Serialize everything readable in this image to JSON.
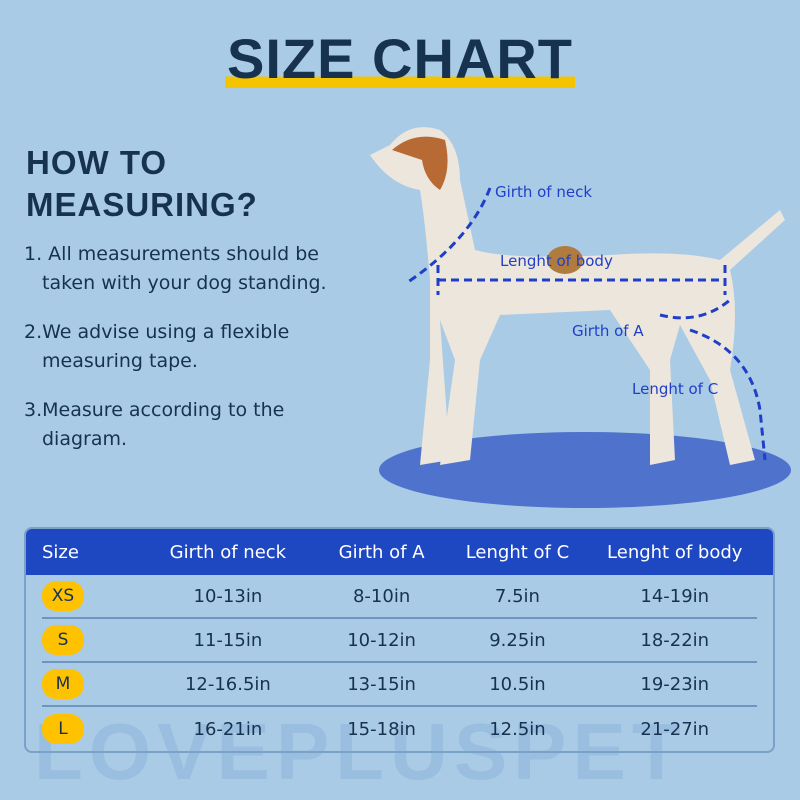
{
  "title": "SIZE CHART",
  "how_to": {
    "heading": "HOW TO MEASURING?",
    "steps": [
      "1. All measurements should be taken with your dog standing.",
      "2.We advise using a flexible measuring tape.",
      "3.Measure according to the diagram."
    ]
  },
  "diagram": {
    "labels": {
      "neck": "Girth of neck",
      "body": "Lenght of body",
      "a": "Girth of A",
      "c": "Lenght of C"
    },
    "accent": "#1f3fc8"
  },
  "table": {
    "headers": [
      "Size",
      "Girth of neck",
      "Girth of A",
      "Lenght of C",
      "Lenght of body"
    ],
    "rows": [
      {
        "size": "XS",
        "neck": "10-13in",
        "a": "8-10in",
        "c": "7.5in",
        "body": "14-19in"
      },
      {
        "size": "S",
        "neck": "11-15in",
        "a": "10-12in",
        "c": "9.25in",
        "body": "18-22in"
      },
      {
        "size": "M",
        "neck": "12-16.5in",
        "a": "13-15in",
        "c": "10.5in",
        "body": "19-23in"
      },
      {
        "size": "L",
        "neck": "16-21in",
        "a": "15-18in",
        "c": "12.5in",
        "body": "21-27in"
      }
    ],
    "header_color": "#1e47c2",
    "badge_color": "#fec200"
  },
  "watermark": "LOVEPLUSPET"
}
